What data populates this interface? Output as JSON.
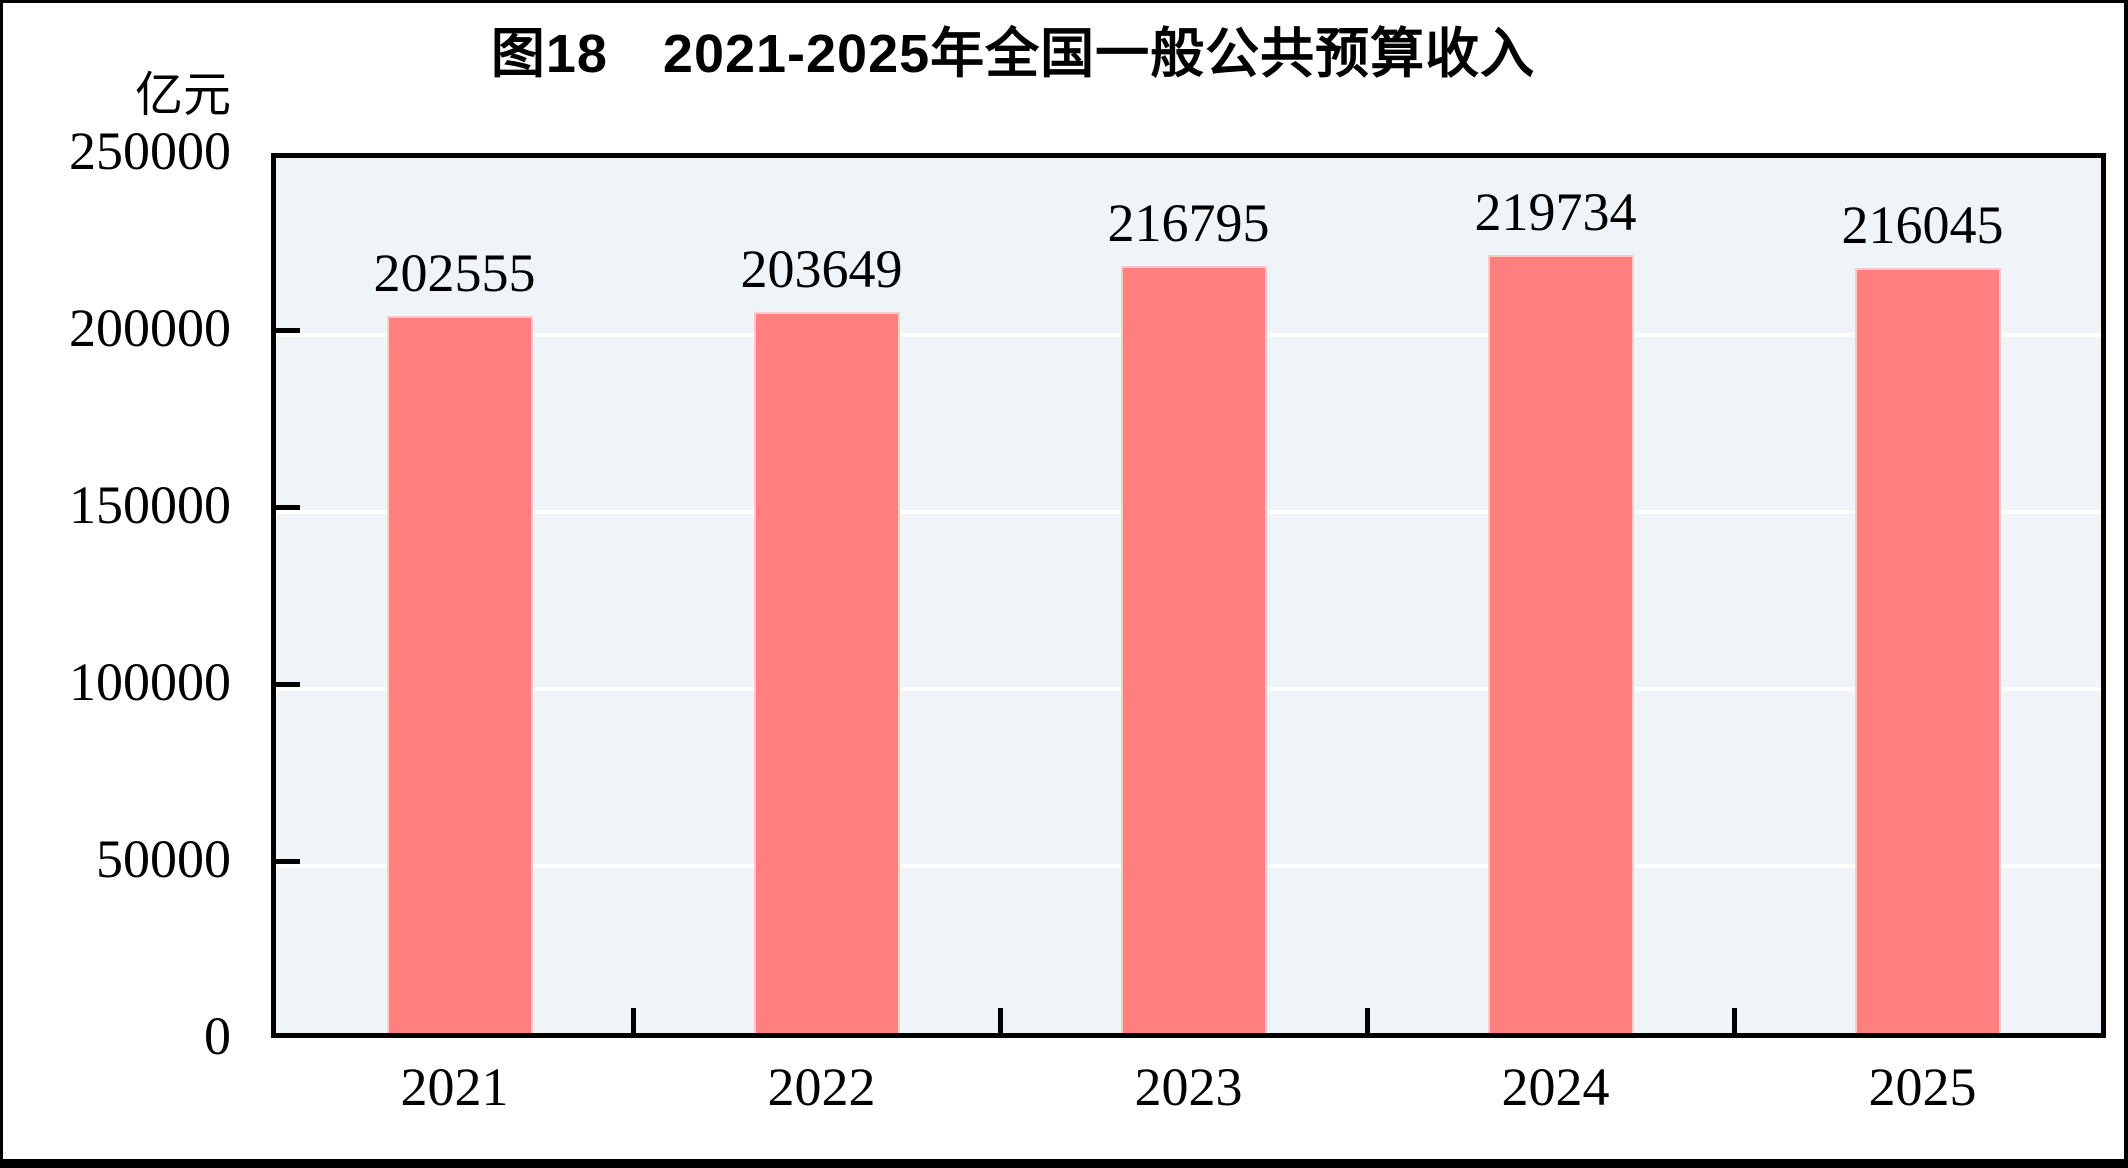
{
  "chart_data": {
    "type": "bar",
    "title": "图18　2021-2025年全国一般公共预算收入",
    "ylabel": "亿元",
    "xlabel": "",
    "categories": [
      "2021",
      "2022",
      "2023",
      "2024",
      "2025"
    ],
    "series": [
      {
        "name": "全国一般公共预算收入",
        "values": [
          202555,
          203649,
          216795,
          219734,
          216045
        ]
      }
    ],
    "data_labels": [
      202555,
      203649,
      216795,
      219734,
      216045
    ],
    "ylim": [
      0,
      250000
    ],
    "ytick_interval": 50000,
    "yticks": [
      0,
      50000,
      100000,
      150000,
      200000,
      250000
    ],
    "grid": true,
    "legend": "none",
    "colors": {
      "bar_fill": "#ff7e7e",
      "bar_edge": "#ffc9c9",
      "plot_background": "#eef4f8",
      "gridline": "#ffffff",
      "frame": "#000000",
      "text": "#000000"
    }
  }
}
